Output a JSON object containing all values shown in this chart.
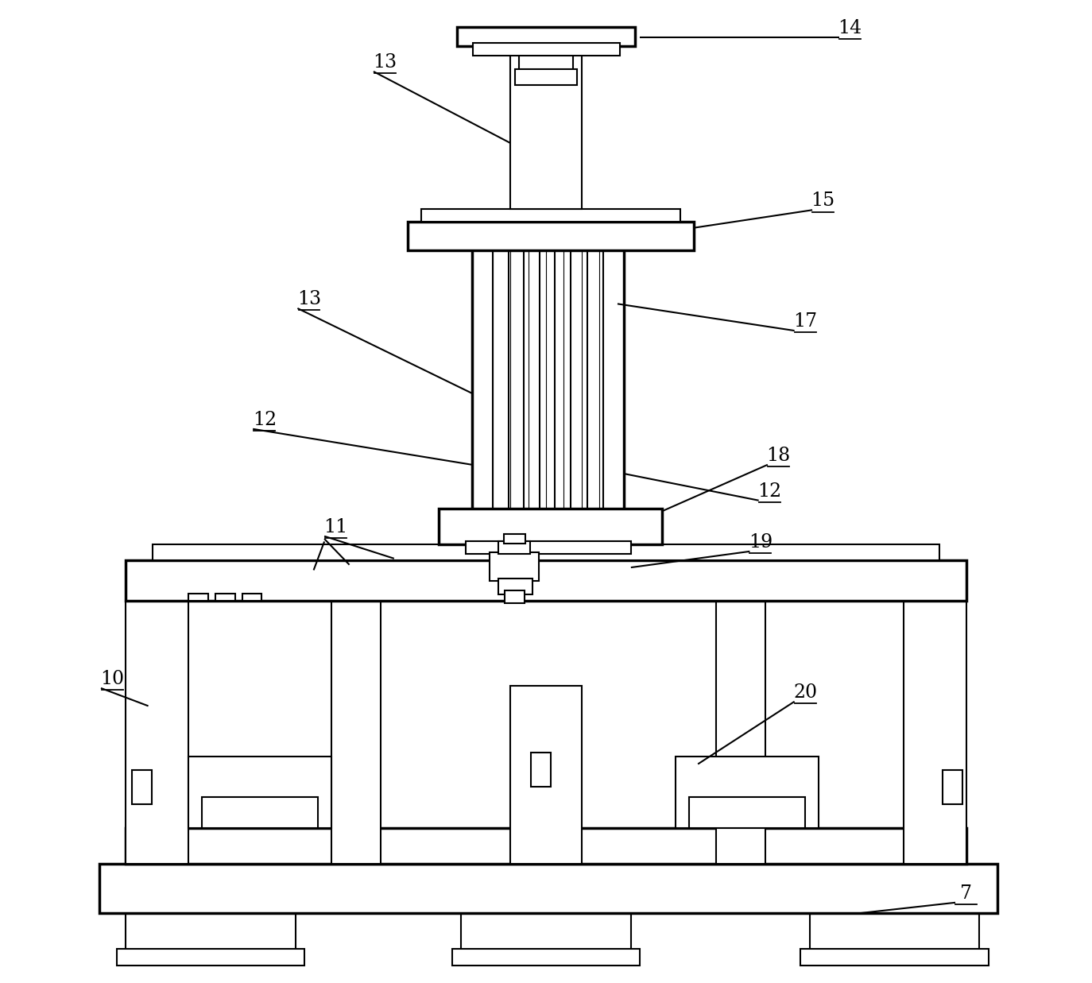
{
  "bg_color": "#ffffff",
  "lc": "#000000",
  "lw": 1.5,
  "tlw": 2.5,
  "fig_width": 13.74,
  "fig_height": 12.37
}
